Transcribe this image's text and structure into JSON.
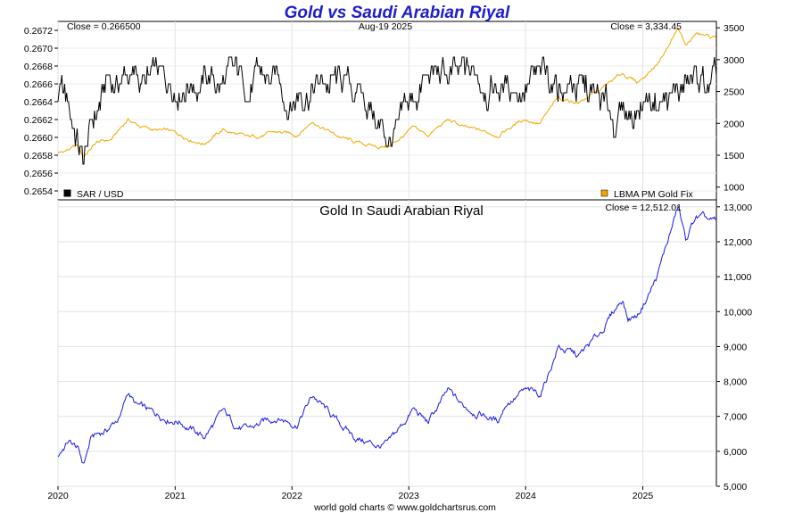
{
  "chart_data": [
    {
      "type": "line",
      "title": "Gold vs Saudi Arabian Riyal",
      "date_label": "Aug-19  2025",
      "left_close_label": "Close = 0.266500",
      "right_close_label": "Close = 3,334.45",
      "x_domain": [
        "2020-01-01",
        "2025-08-19"
      ],
      "left_axis": {
        "ylim": [
          0.2653,
          0.2673
        ],
        "ticks": [
          "0.2654",
          "0.2656",
          "0.2658",
          "0.2660",
          "0.2662",
          "0.2664",
          "0.2666",
          "0.2668",
          "0.2670",
          "0.2672"
        ]
      },
      "right_axis": {
        "ylim": [
          800,
          3600
        ],
        "ticks": [
          "1000",
          "1500",
          "2000",
          "2500",
          "3000",
          "3500"
        ]
      },
      "series": [
        {
          "name": "SAR / USD",
          "axis": "left",
          "color": "#000000",
          "points": [
            [
              "2020-01-01",
              0.2665
            ],
            [
              "2020-02-01",
              0.2663
            ],
            [
              "2020-03-01",
              0.266
            ],
            [
              "2020-03-20",
              0.2657
            ],
            [
              "2020-04-15",
              0.2661
            ],
            [
              "2020-05-15",
              0.2664
            ],
            [
              "2020-06-01",
              0.2666
            ],
            [
              "2020-07-01",
              0.2666
            ],
            [
              "2020-08-01",
              0.2667
            ],
            [
              "2020-10-01",
              0.2666
            ],
            [
              "2020-12-01",
              0.2666
            ],
            [
              "2021-03-01",
              0.2667
            ],
            [
              "2021-06-01",
              0.2666
            ],
            [
              "2021-09-01",
              0.2666
            ],
            [
              "2021-12-01",
              0.2666
            ],
            [
              "2022-01-01",
              0.2664
            ],
            [
              "2022-02-01",
              0.2666
            ],
            [
              "2022-06-01",
              0.2666
            ],
            [
              "2022-09-01",
              0.2664
            ],
            [
              "2022-10-01",
              0.2661
            ],
            [
              "2022-11-01",
              0.266
            ],
            [
              "2022-12-01",
              0.266
            ],
            [
              "2023-01-01",
              0.2663
            ],
            [
              "2023-02-15",
              0.2666
            ],
            [
              "2023-04-01",
              0.2667
            ],
            [
              "2023-06-01",
              0.2666
            ],
            [
              "2023-08-01",
              0.2667
            ],
            [
              "2023-10-01",
              0.2666
            ],
            [
              "2024-01-01",
              0.2666
            ],
            [
              "2024-04-01",
              0.2666
            ],
            [
              "2024-06-01",
              0.2666
            ],
            [
              "2024-08-01",
              0.2664
            ],
            [
              "2024-10-01",
              0.2662
            ],
            [
              "2024-12-01",
              0.2663
            ],
            [
              "2025-02-01",
              0.2665
            ],
            [
              "2025-04-01",
              0.2664
            ],
            [
              "2025-06-01",
              0.2666
            ],
            [
              "2025-08-19",
              0.2665
            ]
          ]
        },
        {
          "name": "LBMA PM Gold Fix",
          "axis": "right",
          "color": "#f0a800",
          "points": [
            [
              "2020-01-01",
              1520
            ],
            [
              "2020-03-01",
              1640
            ],
            [
              "2020-03-20",
              1480
            ],
            [
              "2020-05-01",
              1700
            ],
            [
              "2020-06-15",
              1740
            ],
            [
              "2020-08-06",
              2060
            ],
            [
              "2020-09-15",
              1950
            ],
            [
              "2020-11-01",
              1890
            ],
            [
              "2020-12-15",
              1870
            ],
            [
              "2021-03-31",
              1690
            ],
            [
              "2021-05-31",
              1900
            ],
            [
              "2021-08-15",
              1770
            ],
            [
              "2021-11-15",
              1860
            ],
            [
              "2022-01-15",
              1820
            ],
            [
              "2022-03-08",
              2040
            ],
            [
              "2022-05-15",
              1820
            ],
            [
              "2022-07-15",
              1700
            ],
            [
              "2022-09-28",
              1630
            ],
            [
              "2022-11-01",
              1640
            ],
            [
              "2023-01-15",
              1920
            ],
            [
              "2023-03-01",
              1810
            ],
            [
              "2023-05-04",
              2050
            ],
            [
              "2023-07-01",
              1920
            ],
            [
              "2023-10-05",
              1820
            ],
            [
              "2023-12-28",
              2070
            ],
            [
              "2024-02-15",
              2000
            ],
            [
              "2024-04-12",
              2390
            ],
            [
              "2024-06-15",
              2330
            ],
            [
              "2024-08-15",
              2500
            ],
            [
              "2024-10-30",
              2780
            ],
            [
              "2024-12-15",
              2640
            ],
            [
              "2025-02-15",
              2930
            ],
            [
              "2025-04-22",
              3500
            ],
            [
              "2025-05-15",
              3200
            ],
            [
              "2025-06-15",
              3400
            ],
            [
              "2025-08-19",
              3334
            ]
          ]
        }
      ],
      "legend": [
        {
          "label": "SAR / USD",
          "color": "#000000",
          "position": "bottom-left"
        },
        {
          "label": "LBMA PM Gold Fix",
          "color": "#f0a800",
          "position": "bottom-right"
        }
      ]
    },
    {
      "type": "line",
      "title": "Gold In Saudi Arabian Riyal",
      "close_label": "Close = 12,512.01",
      "x_domain": [
        "2020-01-01",
        "2025-08-19"
      ],
      "xticks": [
        "2020",
        "2021",
        "2022",
        "2023",
        "2024",
        "2025"
      ],
      "ylim": [
        5000,
        13200
      ],
      "yticks": [
        "5,000",
        "6,000",
        "7,000",
        "8,000",
        "9,000",
        "10,000",
        "11,000",
        "12,000",
        "13,000"
      ],
      "series": [
        {
          "name": "Gold In Saudi Arabian Riyal",
          "color": "#1a1ae6",
          "points": [
            [
              "2020-01-01",
              5900
            ],
            [
              "2020-02-01",
              6300
            ],
            [
              "2020-03-01",
              6100
            ],
            [
              "2020-03-20",
              5600
            ],
            [
              "2020-04-15",
              6400
            ],
            [
              "2020-06-01",
              6600
            ],
            [
              "2020-07-15",
              7000
            ],
            [
              "2020-08-06",
              7700
            ],
            [
              "2020-09-01",
              7300
            ],
            [
              "2020-10-15",
              7100
            ],
            [
              "2020-12-01",
              7000
            ],
            [
              "2021-01-15",
              6900
            ],
            [
              "2021-03-31",
              6400
            ],
            [
              "2021-05-31",
              7100
            ],
            [
              "2021-07-01",
              6800
            ],
            [
              "2021-08-15",
              6600
            ],
            [
              "2021-11-15",
              7000
            ],
            [
              "2022-01-15",
              6800
            ],
            [
              "2022-03-08",
              7600
            ],
            [
              "2022-05-15",
              6900
            ],
            [
              "2022-07-15",
              6400
            ],
            [
              "2022-09-28",
              6150
            ],
            [
              "2022-11-01",
              6200
            ],
            [
              "2023-01-15",
              7200
            ],
            [
              "2023-03-01",
              6800
            ],
            [
              "2023-05-04",
              7700
            ],
            [
              "2023-06-15",
              7300
            ],
            [
              "2023-08-15",
              7100
            ],
            [
              "2023-10-05",
              6850
            ],
            [
              "2023-11-01",
              7400
            ],
            [
              "2023-12-28",
              7700
            ],
            [
              "2024-02-15",
              7600
            ],
            [
              "2024-03-15",
              8300
            ],
            [
              "2024-04-12",
              9000
            ],
            [
              "2024-06-15",
              8700
            ],
            [
              "2024-08-15",
              9300
            ],
            [
              "2024-10-30",
              10400
            ],
            [
              "2024-11-15",
              9800
            ],
            [
              "2024-12-15",
              9900
            ],
            [
              "2025-02-15",
              11000
            ],
            [
              "2025-04-22",
              13000
            ],
            [
              "2025-05-15",
              12000
            ],
            [
              "2025-06-15",
              12700
            ],
            [
              "2025-08-19",
              12512
            ]
          ]
        }
      ]
    }
  ],
  "footer": "world gold charts © www.goldchartsrus.com"
}
